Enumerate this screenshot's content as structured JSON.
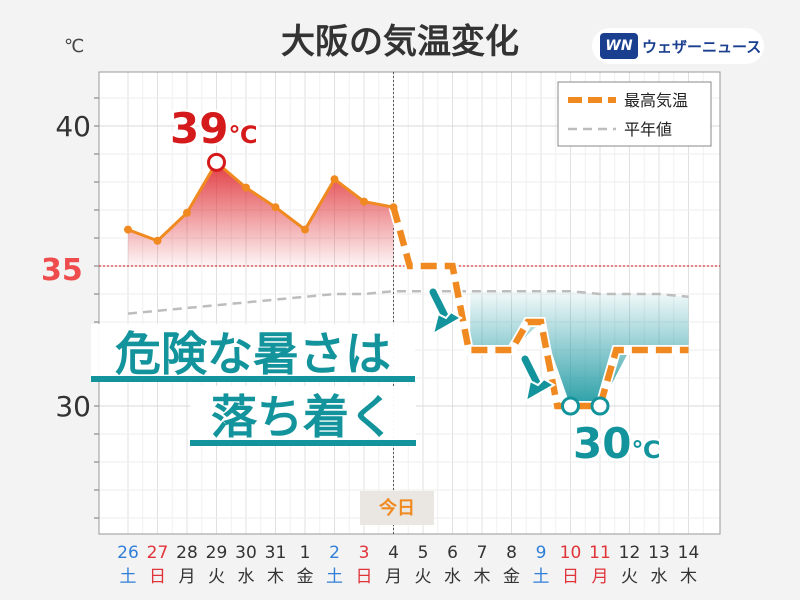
{
  "title": "大阪の気温変化",
  "unit_label": "℃",
  "logo": {
    "mark": "WN",
    "text": "ウェザーニュース"
  },
  "legend": {
    "series1": "最高気温",
    "series2": "平年値"
  },
  "annotations": {
    "max_label": "39",
    "max_unit": "℃",
    "min_label": "30",
    "min_unit": "℃",
    "threshold_label": "35",
    "message_line1": "危険な暑さは",
    "message_line2": "落ち着く",
    "today_label": "今日"
  },
  "colors": {
    "forecast": "#f08a20",
    "normal": "#bdbdbd",
    "hot": "#e0343a",
    "cool": "#1f9aa3",
    "threshold": "#e0343a",
    "saturday": "#2f7fd8",
    "holiday": "#e0343a"
  },
  "chart_data": {
    "type": "line",
    "ylim": [
      25,
      42
    ],
    "yticks": [
      30,
      35,
      40
    ],
    "threshold": 35,
    "today_index": 9,
    "categories": [
      {
        "date": "26",
        "dow": "土",
        "kind": "sat"
      },
      {
        "date": "27",
        "dow": "日",
        "kind": "hol"
      },
      {
        "date": "28",
        "dow": "月",
        "kind": "wd"
      },
      {
        "date": "29",
        "dow": "火",
        "kind": "wd"
      },
      {
        "date": "30",
        "dow": "水",
        "kind": "wd"
      },
      {
        "date": "31",
        "dow": "木",
        "kind": "wd"
      },
      {
        "date": "1",
        "dow": "金",
        "kind": "wd"
      },
      {
        "date": "2",
        "dow": "土",
        "kind": "sat"
      },
      {
        "date": "3",
        "dow": "日",
        "kind": "hol"
      },
      {
        "date": "4",
        "dow": "月",
        "kind": "wd"
      },
      {
        "date": "5",
        "dow": "火",
        "kind": "wd"
      },
      {
        "date": "6",
        "dow": "水",
        "kind": "wd"
      },
      {
        "date": "7",
        "dow": "木",
        "kind": "wd"
      },
      {
        "date": "8",
        "dow": "金",
        "kind": "wd"
      },
      {
        "date": "9",
        "dow": "土",
        "kind": "sat"
      },
      {
        "date": "10",
        "dow": "日",
        "kind": "hol"
      },
      {
        "date": "11",
        "dow": "月",
        "kind": "hol"
      },
      {
        "date": "12",
        "dow": "火",
        "kind": "wd"
      },
      {
        "date": "13",
        "dow": "水",
        "kind": "wd"
      },
      {
        "date": "14",
        "dow": "木",
        "kind": "wd"
      }
    ],
    "series": [
      {
        "name": "最高気温",
        "values": [
          36.3,
          35.9,
          36.9,
          38.7,
          37.8,
          37.1,
          36.3,
          38.1,
          37.3,
          37.1,
          35,
          35,
          32,
          32,
          33,
          30,
          30,
          32,
          32,
          32
        ]
      },
      {
        "name": "平年値",
        "values": [
          33.3,
          33.4,
          33.5,
          33.6,
          33.7,
          33.8,
          33.9,
          34.0,
          34.0,
          34.1,
          34.1,
          34.1,
          34.1,
          34.1,
          34.1,
          34.1,
          34.0,
          34.0,
          34.0,
          33.9
        ]
      }
    ]
  }
}
